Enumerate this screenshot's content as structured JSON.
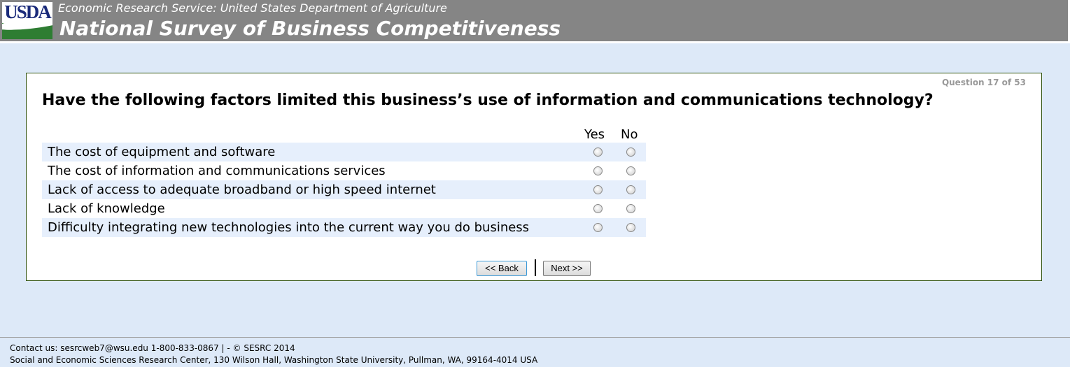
{
  "header": {
    "logo_text": "USDA",
    "agency": "Economic Research Service: United States Department of Agriculture",
    "title": "National Survey of Business Competitiveness"
  },
  "question": {
    "counter": "Question 17 of 53",
    "text": "Have the following factors limited this business’s use of information and communications technology?",
    "columns": [
      "Yes",
      "No"
    ],
    "items": [
      {
        "label": "The cost of equipment and software",
        "selected": null
      },
      {
        "label": "The cost of information and communications services",
        "selected": null
      },
      {
        "label": "Lack of access to adequate broadband or high speed internet",
        "selected": null
      },
      {
        "label": "Lack of knowledge",
        "selected": null
      },
      {
        "label": "Difficulty integrating new technologies into the current way you do business",
        "selected": null
      }
    ]
  },
  "nav": {
    "back": "<< Back",
    "next": "Next >>"
  },
  "footer": {
    "contact": "Contact us: sesrcweb7@wsu.edu 1-800-833-0867 | - © SESRC 2014",
    "address": "Social and Economic Sciences Research Center, 130 Wilson Hall, Washington State University, Pullman, WA, 99164-4014 USA"
  }
}
